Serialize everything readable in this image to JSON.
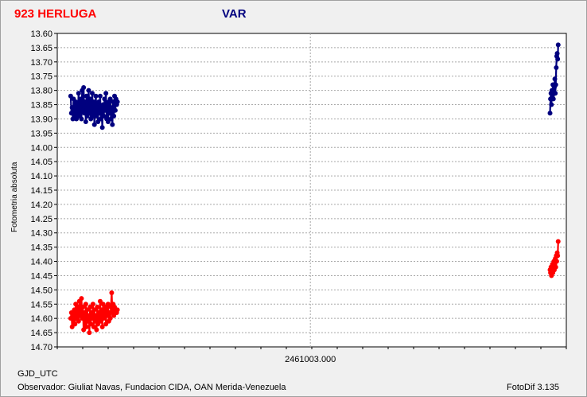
{
  "chart_data": {
    "type": "scatter",
    "title_left": "923 HERLUGA",
    "title_right": "VAR",
    "ylabel": "Fotometria absoluta",
    "xlabel": "GJD_UTC",
    "x_tick_label": "2461003.000",
    "ylim": [
      13.6,
      14.7
    ],
    "y_inverted": true,
    "y_ticks": [
      "13.60",
      "13.65",
      "13.70",
      "13.75",
      "13.80",
      "13.85",
      "13.90",
      "13.95",
      "14.00",
      "14.05",
      "14.10",
      "14.15",
      "14.20",
      "14.25",
      "14.30",
      "14.35",
      "14.40",
      "14.45",
      "14.50",
      "14.55",
      "14.60",
      "14.65",
      "14.70"
    ],
    "grid": true,
    "colors": {
      "var": "#00007f",
      "comp": "#ff0000"
    },
    "series": [
      {
        "key": "var",
        "segments": [
          {
            "x": [
              0.0,
              0.003,
              0.006,
              0.009,
              0.012,
              0.015,
              0.018,
              0.021,
              0.024,
              0.027,
              0.03,
              0.033,
              0.036,
              0.039,
              0.042,
              0.045,
              0.048,
              0.051,
              0.054,
              0.057,
              0.06,
              0.063,
              0.066,
              0.069,
              0.072,
              0.075,
              0.078,
              0.081,
              0.084,
              0.087,
              0.09,
              0.093,
              0.096,
              0.099,
              0.102,
              0.105,
              0.108,
              0.111,
              0.114,
              0.117,
              0.12,
              0.123,
              0.126,
              0.129,
              0.132,
              0.135,
              0.138,
              0.141,
              0.144,
              0.147,
              0.15,
              0.153,
              0.156,
              0.159,
              0.162,
              0.165,
              0.168,
              0.171,
              0.174,
              0.177,
              0.18,
              0.183,
              0.186,
              0.189,
              0.192,
              0.195
            ],
            "y": [
              13.82,
              13.88,
              13.86,
              13.9,
              13.83,
              13.89,
              13.87,
              13.84,
              13.9,
              13.85,
              13.88,
              13.81,
              13.89,
              13.86,
              13.83,
              13.9,
              13.8,
              13.87,
              13.79,
              13.88,
              13.84,
              13.91,
              13.82,
              13.89,
              13.85,
              13.8,
              13.88,
              13.83,
              13.9,
              13.86,
              13.81,
              13.89,
              13.84,
              13.92,
              13.87,
              13.82,
              13.89,
              13.85,
              13.91,
              13.84,
              13.88,
              13.82,
              13.9,
              13.86,
              13.93,
              13.85,
              13.89,
              13.83,
              13.87,
              13.81,
              13.9,
              13.85,
              13.91,
              13.84,
              13.88,
              13.83,
              13.9,
              13.86,
              13.92,
              13.84,
              13.89,
              13.82,
              13.87,
              13.83,
              13.85,
              13.84
            ]
          },
          {
            "x": [
              2.0,
              2.002,
              2.004,
              2.006,
              2.008,
              2.01,
              2.012,
              2.014,
              2.016,
              2.018,
              2.02,
              2.022,
              2.024,
              2.026,
              2.028,
              2.03,
              2.032,
              2.034
            ],
            "y": [
              13.88,
              13.83,
              13.81,
              13.85,
              13.8,
              13.82,
              13.78,
              13.83,
              13.8,
              13.79,
              13.76,
              13.81,
              13.78,
              13.72,
              13.68,
              13.67,
              13.69,
              13.64
            ]
          }
        ]
      },
      {
        "key": "comp",
        "segments": [
          {
            "x": [
              0.0,
              0.003,
              0.006,
              0.009,
              0.012,
              0.015,
              0.018,
              0.021,
              0.024,
              0.027,
              0.03,
              0.033,
              0.036,
              0.039,
              0.042,
              0.045,
              0.048,
              0.051,
              0.054,
              0.057,
              0.06,
              0.063,
              0.066,
              0.069,
              0.072,
              0.075,
              0.078,
              0.081,
              0.084,
              0.087,
              0.09,
              0.093,
              0.096,
              0.099,
              0.102,
              0.105,
              0.108,
              0.111,
              0.114,
              0.117,
              0.12,
              0.123,
              0.126,
              0.129,
              0.132,
              0.135,
              0.138,
              0.141,
              0.144,
              0.147,
              0.15,
              0.153,
              0.156,
              0.159,
              0.162,
              0.165,
              0.168,
              0.171,
              0.174,
              0.177,
              0.18,
              0.183,
              0.186,
              0.189,
              0.192,
              0.195
            ],
            "y": [
              14.6,
              14.58,
              14.63,
              14.59,
              14.61,
              14.57,
              14.62,
              14.55,
              14.6,
              14.58,
              14.56,
              14.61,
              14.54,
              14.59,
              14.57,
              14.53,
              14.6,
              14.56,
              14.64,
              14.58,
              14.62,
              14.55,
              14.63,
              14.57,
              14.61,
              14.59,
              14.65,
              14.56,
              14.62,
              14.58,
              14.6,
              14.55,
              14.63,
              14.57,
              14.61,
              14.59,
              14.64,
              14.56,
              14.62,
              14.58,
              14.6,
              14.54,
              14.61,
              14.57,
              14.63,
              14.55,
              14.6,
              14.58,
              14.56,
              14.62,
              14.57,
              14.59,
              14.55,
              14.61,
              14.58,
              14.6,
              14.56,
              14.51,
              14.58,
              14.55,
              14.59,
              14.56,
              14.58,
              14.57,
              14.58,
              14.57
            ]
          },
          {
            "x": [
              2.0,
              2.002,
              2.004,
              2.006,
              2.008,
              2.01,
              2.012,
              2.014,
              2.016,
              2.018,
              2.02,
              2.022,
              2.024,
              2.026,
              2.028,
              2.03,
              2.032,
              2.034
            ],
            "y": [
              14.43,
              14.44,
              14.42,
              14.45,
              14.43,
              14.41,
              14.44,
              14.42,
              14.4,
              14.43,
              14.41,
              14.39,
              14.42,
              14.38,
              14.4,
              14.37,
              14.38,
              14.33
            ]
          }
        ]
      }
    ]
  },
  "footer": {
    "observer": "Observador: Giuliat Navas, Fundacion CIDA, OAN  Merida-Venezuela",
    "software": "FotoDif 3.135"
  }
}
